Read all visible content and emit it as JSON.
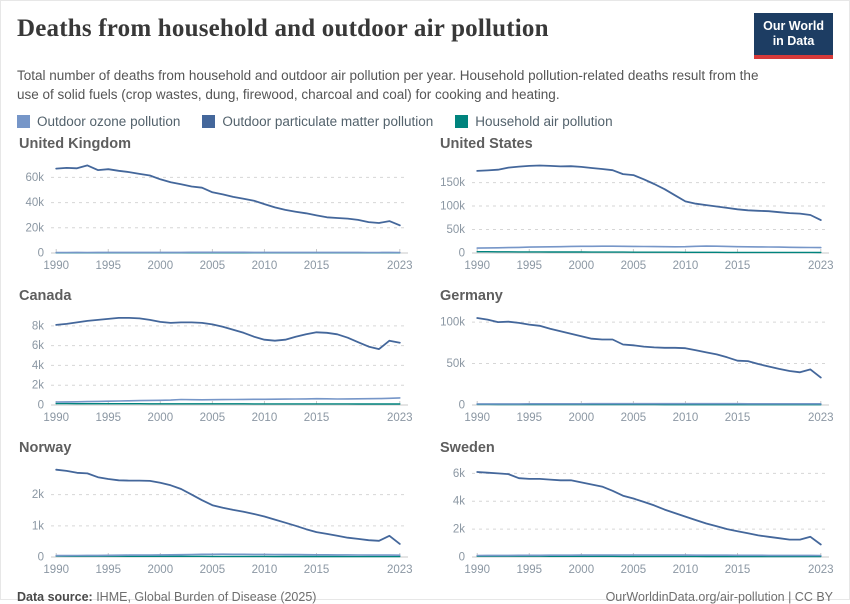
{
  "header": {
    "title": "Deaths from household and outdoor air pollution",
    "subtitle": "Total number of deaths from household and outdoor air pollution per year. Household pollution-related deaths result from the use of solid fuels (crop wastes, dung, firewood, charcoal and coal) for cooking and heating.",
    "logo": {
      "line1": "Our World",
      "line2": "in Data"
    }
  },
  "colors": {
    "ozone": "#7696c8",
    "particulate": "#44679b",
    "household": "#00847e",
    "logo_navy": "#1d3d63",
    "logo_red": "#d73a3a",
    "gridline": "#d6d6d6",
    "axis": "#c9c9c9",
    "axis_label": "#8b97a3"
  },
  "legend": {
    "items": [
      {
        "label": "Outdoor ozone pollution",
        "color": "#7696c8"
      },
      {
        "label": "Outdoor particulate matter pollution",
        "color": "#44679b"
      },
      {
        "label": "Household air pollution",
        "color": "#00847e"
      }
    ]
  },
  "footer": {
    "datasource_label": "Data source:",
    "datasource_value": " IHME, Global Burden of Disease (2025)",
    "credit": "OurWorldinData.org/air-pollution | CC BY"
  },
  "chart_data": [
    {
      "title": "United Kingdom",
      "type": "line",
      "x_start": 1990,
      "x_end": 2023,
      "x_ticks": [
        1990,
        1995,
        2000,
        2005,
        2010,
        2015,
        2023
      ],
      "ylim": [
        0,
        73000
      ],
      "y_ticks": [
        {
          "v": 0,
          "label": "0"
        },
        {
          "v": 20000,
          "label": "20k"
        },
        {
          "v": 40000,
          "label": "40k"
        },
        {
          "v": 60000,
          "label": "60k"
        }
      ],
      "series": [
        {
          "name": "Outdoor ozone pollution",
          "color": "#7696c8",
          "values": [
            420,
            430,
            440,
            430,
            440,
            450,
            440,
            450,
            460,
            460,
            470,
            480,
            500,
            520,
            520,
            530,
            540,
            530,
            520,
            500,
            480,
            490,
            480,
            470,
            460,
            470,
            460,
            450,
            460,
            440,
            430,
            430,
            440,
            430
          ]
        },
        {
          "name": "Outdoor particulate matter pollution",
          "color": "#44679b",
          "values": [
            67000,
            67500,
            67200,
            69500,
            65800,
            66500,
            65200,
            64200,
            62800,
            61500,
            58500,
            56200,
            54500,
            52800,
            51800,
            48200,
            46500,
            44500,
            43000,
            41500,
            38800,
            36200,
            34200,
            32800,
            31500,
            29800,
            28300,
            27800,
            27300,
            26300,
            24500,
            23800,
            25300,
            22000
          ]
        },
        {
          "name": "Household air pollution",
          "color": "#00847e",
          "values": [
            190,
            185,
            180,
            178,
            175,
            172,
            170,
            168,
            165,
            162,
            160,
            158,
            155,
            152,
            150,
            148,
            146,
            144,
            142,
            140,
            138,
            136,
            134,
            132,
            130,
            128,
            127,
            126,
            125,
            124,
            123,
            122,
            121,
            120
          ]
        }
      ]
    },
    {
      "title": "United States",
      "type": "line",
      "x_start": 1990,
      "x_end": 2023,
      "x_ticks": [
        1990,
        1995,
        2000,
        2005,
        2010,
        2015,
        2023
      ],
      "ylim": [
        0,
        196000
      ],
      "y_ticks": [
        {
          "v": 0,
          "label": "0"
        },
        {
          "v": 50000,
          "label": "50k"
        },
        {
          "v": 100000,
          "label": "100k"
        },
        {
          "v": 150000,
          "label": "150k"
        }
      ],
      "series": [
        {
          "name": "Outdoor ozone pollution",
          "color": "#7696c8",
          "values": [
            10500,
            10800,
            11000,
            11500,
            12000,
            12500,
            13000,
            13200,
            13500,
            14000,
            14200,
            14300,
            14500,
            14400,
            14200,
            14000,
            13800,
            13600,
            13400,
            13200,
            13500,
            14200,
            14800,
            14500,
            14000,
            13500,
            13200,
            13000,
            12800,
            12600,
            12200,
            12000,
            11800,
            11500
          ]
        },
        {
          "name": "Outdoor particulate matter pollution",
          "color": "#44679b",
          "values": [
            175000,
            176000,
            177500,
            182000,
            184000,
            185500,
            186500,
            185500,
            184500,
            185000,
            183500,
            181000,
            179000,
            176500,
            168000,
            166000,
            157000,
            147000,
            136000,
            123000,
            110000,
            105000,
            102000,
            99000,
            96000,
            93000,
            91000,
            90000,
            89000,
            87000,
            85000,
            84000,
            81000,
            70000
          ]
        },
        {
          "name": "Household air pollution",
          "color": "#00847e",
          "values": [
            2800,
            2700,
            2600,
            2500,
            2400,
            2300,
            2250,
            2200,
            2150,
            2100,
            2050,
            2000,
            1950,
            1900,
            1850,
            1800,
            1750,
            1700,
            1650,
            1600,
            1550,
            1500,
            1450,
            1400,
            1380,
            1350,
            1320,
            1300,
            1280,
            1250,
            1220,
            1200,
            1180,
            1150
          ]
        }
      ]
    },
    {
      "title": "Canada",
      "type": "line",
      "x_start": 1990,
      "x_end": 2023,
      "x_ticks": [
        1990,
        1995,
        2000,
        2005,
        2010,
        2015,
        2023
      ],
      "ylim": [
        0,
        9300
      ],
      "y_ticks": [
        {
          "v": 0,
          "label": "0"
        },
        {
          "v": 2000,
          "label": "2k"
        },
        {
          "v": 4000,
          "label": "4k"
        },
        {
          "v": 6000,
          "label": "6k"
        },
        {
          "v": 8000,
          "label": "8k"
        }
      ],
      "series": [
        {
          "name": "Outdoor ozone pollution",
          "color": "#7696c8",
          "values": [
            300,
            310,
            320,
            340,
            360,
            380,
            400,
            420,
            440,
            460,
            480,
            500,
            560,
            540,
            530,
            540,
            550,
            560,
            570,
            580,
            580,
            590,
            600,
            610,
            620,
            640,
            630,
            610,
            620,
            630,
            640,
            650,
            680,
            720
          ]
        },
        {
          "name": "Outdoor particulate matter pollution",
          "color": "#44679b",
          "values": [
            8100,
            8200,
            8350,
            8500,
            8600,
            8700,
            8800,
            8800,
            8750,
            8600,
            8400,
            8300,
            8350,
            8350,
            8300,
            8150,
            7900,
            7600,
            7300,
            6900,
            6600,
            6500,
            6600,
            6900,
            7150,
            7350,
            7300,
            7150,
            6800,
            6350,
            5900,
            5650,
            6500,
            6300
          ]
        },
        {
          "name": "Household air pollution",
          "color": "#00847e",
          "values": [
            140,
            138,
            136,
            134,
            132,
            130,
            129,
            128,
            127,
            126,
            125,
            124,
            123,
            122,
            121,
            120,
            119,
            118,
            117,
            116,
            115,
            114,
            113,
            112,
            111,
            110,
            109,
            108,
            107,
            106,
            105,
            104,
            103,
            102
          ]
        }
      ]
    },
    {
      "title": "Germany",
      "type": "line",
      "x_start": 1990,
      "x_end": 2023,
      "x_ticks": [
        1990,
        1995,
        2000,
        2005,
        2010,
        2015,
        2023
      ],
      "ylim": [
        0,
        111000
      ],
      "y_ticks": [
        {
          "v": 0,
          "label": "0"
        },
        {
          "v": 50000,
          "label": "50k"
        },
        {
          "v": 100000,
          "label": "100k"
        }
      ],
      "series": [
        {
          "name": "Outdoor ozone pollution",
          "color": "#7696c8",
          "values": [
            1300,
            1320,
            1340,
            1360,
            1380,
            1400,
            1420,
            1440,
            1460,
            1480,
            1500,
            1520,
            1540,
            1560,
            1560,
            1580,
            1600,
            1590,
            1580,
            1570,
            1560,
            1550,
            1540,
            1530,
            1520,
            1510,
            1500,
            1490,
            1480,
            1470,
            1460,
            1450,
            1470,
            1440
          ]
        },
        {
          "name": "Outdoor particulate matter pollution",
          "color": "#44679b",
          "values": [
            105000,
            103000,
            100000,
            100500,
            99000,
            97000,
            95500,
            92000,
            89000,
            86000,
            83000,
            80000,
            79000,
            79000,
            73000,
            72000,
            70500,
            69500,
            69000,
            69000,
            68500,
            66000,
            63500,
            61000,
            57500,
            53500,
            53000,
            49500,
            46500,
            43500,
            41000,
            39500,
            43000,
            33000
          ]
        },
        {
          "name": "Household air pollution",
          "color": "#00847e",
          "values": [
            700,
            680,
            660,
            640,
            620,
            600,
            580,
            560,
            540,
            520,
            500,
            490,
            480,
            470,
            460,
            450,
            440,
            430,
            420,
            410,
            400,
            390,
            380,
            370,
            360,
            350,
            345,
            340,
            335,
            330,
            325,
            320,
            315,
            310
          ]
        }
      ]
    },
    {
      "title": "Norway",
      "type": "line",
      "x_start": 1990,
      "x_end": 2023,
      "x_ticks": [
        1990,
        1995,
        2000,
        2005,
        2010,
        2015,
        2023
      ],
      "ylim": [
        0,
        2950
      ],
      "y_ticks": [
        {
          "v": 0,
          "label": "0"
        },
        {
          "v": 1000,
          "label": "1k"
        },
        {
          "v": 2000,
          "label": "2k"
        }
      ],
      "series": [
        {
          "name": "Outdoor ozone pollution",
          "color": "#7696c8",
          "values": [
            45,
            46,
            48,
            50,
            52,
            55,
            58,
            60,
            62,
            65,
            68,
            70,
            75,
            80,
            85,
            88,
            90,
            88,
            86,
            84,
            82,
            80,
            78,
            76,
            74,
            72,
            70,
            68,
            66,
            64,
            62,
            60,
            62,
            58
          ]
        },
        {
          "name": "Outdoor particulate matter pollution",
          "color": "#44679b",
          "values": [
            2800,
            2760,
            2700,
            2680,
            2560,
            2500,
            2460,
            2450,
            2450,
            2440,
            2380,
            2300,
            2180,
            2000,
            1820,
            1660,
            1580,
            1510,
            1450,
            1380,
            1300,
            1200,
            1100,
            1000,
            890,
            800,
            740,
            680,
            620,
            580,
            540,
            520,
            680,
            420
          ]
        },
        {
          "name": "Household air pollution",
          "color": "#00847e",
          "values": [
            28,
            27,
            27,
            26,
            26,
            25,
            25,
            24,
            24,
            23,
            23,
            22,
            22,
            21,
            21,
            20,
            20,
            19,
            19,
            18,
            18,
            17,
            17,
            16,
            16,
            15,
            15,
            15,
            14,
            14,
            14,
            13,
            13,
            13
          ]
        }
      ]
    },
    {
      "title": "Sweden",
      "type": "line",
      "x_start": 1990,
      "x_end": 2023,
      "x_ticks": [
        1990,
        1995,
        2000,
        2005,
        2010,
        2015,
        2023
      ],
      "ylim": [
        0,
        6600
      ],
      "y_ticks": [
        {
          "v": 0,
          "label": "0"
        },
        {
          "v": 2000,
          "label": "2k"
        },
        {
          "v": 4000,
          "label": "4k"
        },
        {
          "v": 6000,
          "label": "6k"
        }
      ],
      "series": [
        {
          "name": "Outdoor ozone pollution",
          "color": "#7696c8",
          "values": [
            110,
            112,
            115,
            118,
            120,
            122,
            125,
            128,
            130,
            132,
            135,
            138,
            140,
            142,
            145,
            145,
            143,
            140,
            138,
            136,
            134,
            132,
            130,
            128,
            126,
            124,
            122,
            120,
            118,
            116,
            114,
            112,
            115,
            110
          ]
        },
        {
          "name": "Outdoor particulate matter pollution",
          "color": "#44679b",
          "values": [
            6100,
            6050,
            6000,
            5950,
            5650,
            5600,
            5600,
            5550,
            5500,
            5500,
            5350,
            5200,
            5050,
            4750,
            4400,
            4200,
            3950,
            3700,
            3400,
            3150,
            2900,
            2650,
            2400,
            2200,
            2000,
            1850,
            1700,
            1550,
            1450,
            1350,
            1250,
            1250,
            1450,
            900
          ]
        },
        {
          "name": "Household air pollution",
          "color": "#00847e",
          "values": [
            60,
            59,
            58,
            57,
            56,
            55,
            54,
            53,
            52,
            51,
            50,
            49,
            48,
            47,
            46,
            45,
            44,
            43,
            42,
            41,
            40,
            40,
            39,
            39,
            38,
            38,
            37,
            37,
            36,
            36,
            35,
            35,
            34,
            34
          ]
        }
      ]
    }
  ]
}
